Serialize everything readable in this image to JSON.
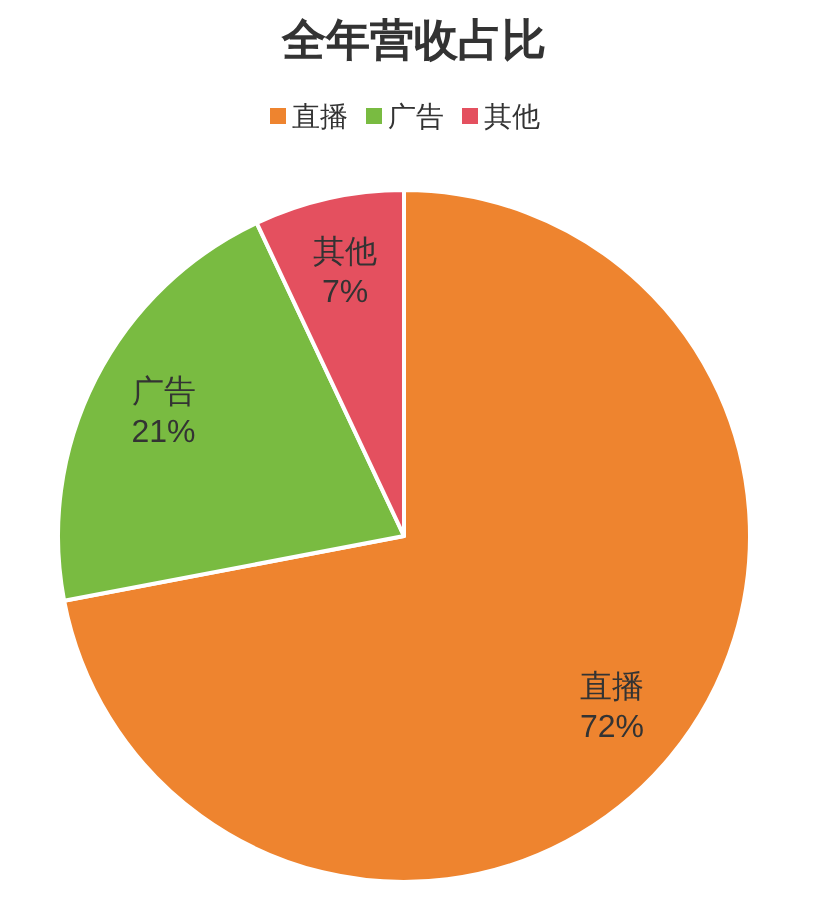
{
  "chart_data": {
    "type": "pie",
    "title": "全年营收占比",
    "legend": "top",
    "categories": [
      "直播",
      "广告",
      "其他"
    ],
    "values": [
      72,
      21,
      7
    ],
    "colors": [
      "#ee842f",
      "#79bb41",
      "#e4505f"
    ],
    "value_labels": [
      "72%",
      "21%",
      "7%"
    ]
  }
}
